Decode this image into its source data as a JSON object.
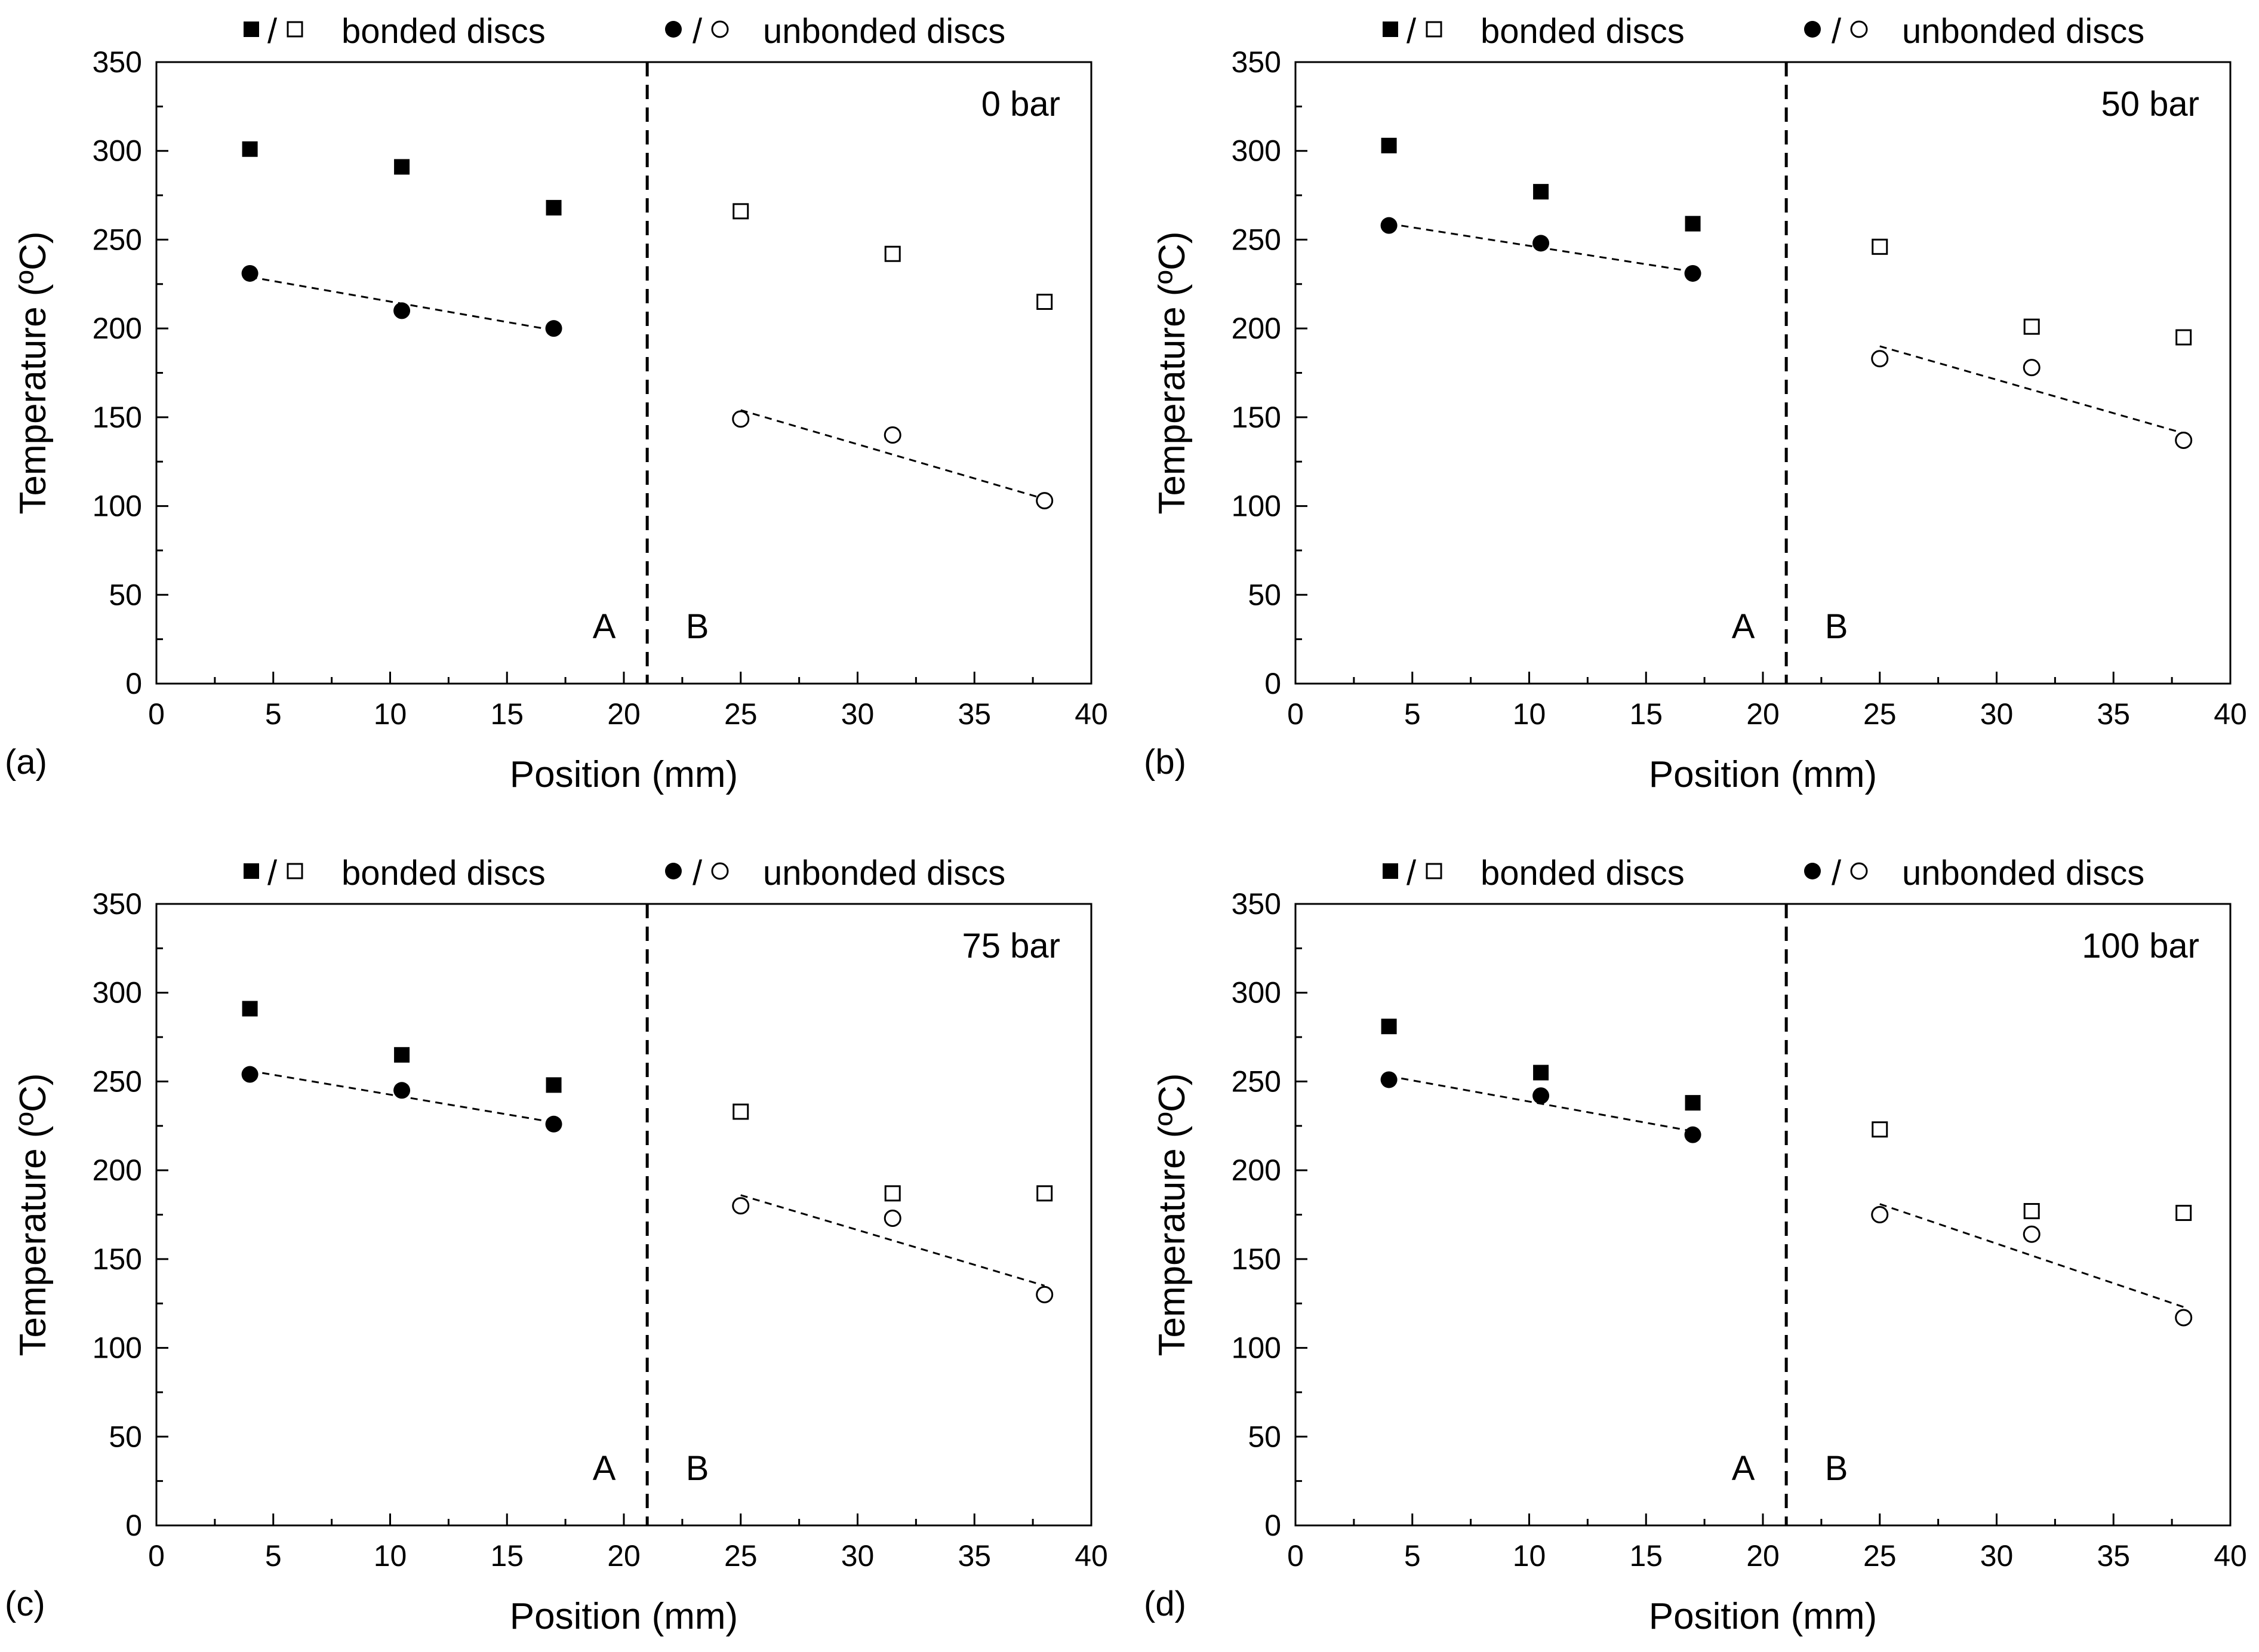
{
  "legend": {
    "bonded_label": "bonded discs",
    "unbonded_label": "unbonded discs",
    "separator": "/"
  },
  "chart_data": [
    {
      "type": "scatter",
      "panel_label": "(a)",
      "annotation": "0 bar",
      "xlabel": "Position (mm)",
      "ylabel": "Temperature (ºC)",
      "xlim": [
        0,
        40
      ],
      "ylim": [
        0,
        350
      ],
      "xticks": [
        0,
        5,
        10,
        15,
        20,
        25,
        30,
        35,
        40
      ],
      "yticks": [
        0,
        50,
        100,
        150,
        200,
        250,
        300,
        350
      ],
      "grid": false,
      "legend_position": "top",
      "divider_x": 21,
      "region_labels": [
        "A",
        "B"
      ],
      "series": [
        {
          "group": "bonded",
          "marker": "filled-square",
          "x": [
            4,
            10.5,
            17
          ],
          "y": [
            301,
            291,
            268
          ]
        },
        {
          "group": "unbonded",
          "marker": "filled-circle",
          "x": [
            4,
            10.5,
            17
          ],
          "y": [
            231,
            210,
            200
          ]
        },
        {
          "group": "bonded",
          "marker": "open-square",
          "x": [
            25,
            31.5,
            38
          ],
          "y": [
            266,
            242,
            215
          ]
        },
        {
          "group": "unbonded",
          "marker": "open-circle",
          "x": [
            25,
            31.5,
            38
          ],
          "y": [
            149,
            140,
            103
          ]
        }
      ],
      "fit_lines": [
        {
          "x": [
            4,
            17
          ],
          "y": [
            229,
            199
          ]
        },
        {
          "x": [
            25,
            38
          ],
          "y": [
            154,
            104
          ]
        }
      ]
    },
    {
      "type": "scatter",
      "panel_label": "(b)",
      "annotation": "50 bar",
      "xlabel": "Position (mm)",
      "ylabel": "Temperature (ºC)",
      "xlim": [
        0,
        40
      ],
      "ylim": [
        0,
        350
      ],
      "xticks": [
        0,
        5,
        10,
        15,
        20,
        25,
        30,
        35,
        40
      ],
      "yticks": [
        0,
        50,
        100,
        150,
        200,
        250,
        300,
        350
      ],
      "grid": false,
      "legend_position": "top",
      "divider_x": 21,
      "region_labels": [
        "A",
        "B"
      ],
      "series": [
        {
          "group": "bonded",
          "marker": "filled-square",
          "x": [
            4,
            10.5,
            17
          ],
          "y": [
            303,
            277,
            259
          ]
        },
        {
          "group": "unbonded",
          "marker": "filled-circle",
          "x": [
            4,
            10.5,
            17
          ],
          "y": [
            258,
            248,
            231
          ]
        },
        {
          "group": "bonded",
          "marker": "open-square",
          "x": [
            25,
            31.5,
            38
          ],
          "y": [
            246,
            201,
            195
          ]
        },
        {
          "group": "unbonded",
          "marker": "open-circle",
          "x": [
            25,
            31.5,
            38
          ],
          "y": [
            183,
            178,
            137
          ]
        }
      ],
      "fit_lines": [
        {
          "x": [
            4,
            17
          ],
          "y": [
            259,
            232
          ]
        },
        {
          "x": [
            25,
            38
          ],
          "y": [
            190,
            141
          ]
        }
      ]
    },
    {
      "type": "scatter",
      "panel_label": "(c)",
      "annotation": "75 bar",
      "xlabel": "Position (mm)",
      "ylabel": "Temperature (ºC)",
      "xlim": [
        0,
        40
      ],
      "ylim": [
        0,
        350
      ],
      "xticks": [
        0,
        5,
        10,
        15,
        20,
        25,
        30,
        35,
        40
      ],
      "yticks": [
        0,
        50,
        100,
        150,
        200,
        250,
        300,
        350
      ],
      "grid": false,
      "legend_position": "top",
      "divider_x": 21,
      "region_labels": [
        "A",
        "B"
      ],
      "series": [
        {
          "group": "bonded",
          "marker": "filled-square",
          "x": [
            4,
            10.5,
            17
          ],
          "y": [
            291,
            265,
            248
          ]
        },
        {
          "group": "unbonded",
          "marker": "filled-circle",
          "x": [
            4,
            10.5,
            17
          ],
          "y": [
            254,
            245,
            226
          ]
        },
        {
          "group": "bonded",
          "marker": "open-square",
          "x": [
            25,
            31.5,
            38
          ],
          "y": [
            233,
            187,
            187
          ]
        },
        {
          "group": "unbonded",
          "marker": "open-circle",
          "x": [
            25,
            31.5,
            38
          ],
          "y": [
            180,
            173,
            130
          ]
        }
      ],
      "fit_lines": [
        {
          "x": [
            4,
            17
          ],
          "y": [
            256,
            227
          ]
        },
        {
          "x": [
            25,
            38
          ],
          "y": [
            186,
            135
          ]
        }
      ]
    },
    {
      "type": "scatter",
      "panel_label": "(d)",
      "annotation": "100 bar",
      "xlabel": "Position (mm)",
      "ylabel": "Temperature (ºC)",
      "xlim": [
        0,
        40
      ],
      "ylim": [
        0,
        350
      ],
      "xticks": [
        0,
        5,
        10,
        15,
        20,
        25,
        30,
        35,
        40
      ],
      "yticks": [
        0,
        50,
        100,
        150,
        200,
        250,
        300,
        350
      ],
      "grid": false,
      "legend_position": "top",
      "divider_x": 21,
      "region_labels": [
        "A",
        "B"
      ],
      "series": [
        {
          "group": "bonded",
          "marker": "filled-square",
          "x": [
            4,
            10.5,
            17
          ],
          "y": [
            281,
            255,
            238
          ]
        },
        {
          "group": "unbonded",
          "marker": "filled-circle",
          "x": [
            4,
            10.5,
            17
          ],
          "y": [
            251,
            242,
            220
          ]
        },
        {
          "group": "bonded",
          "marker": "open-square",
          "x": [
            25,
            31.5,
            38
          ],
          "y": [
            223,
            177,
            176
          ]
        },
        {
          "group": "unbonded",
          "marker": "open-circle",
          "x": [
            25,
            31.5,
            38
          ],
          "y": [
            175,
            164,
            117
          ]
        }
      ],
      "fit_lines": [
        {
          "x": [
            4,
            17
          ],
          "y": [
            253,
            222
          ]
        },
        {
          "x": [
            25,
            38
          ],
          "y": [
            181,
            123
          ]
        }
      ]
    }
  ]
}
